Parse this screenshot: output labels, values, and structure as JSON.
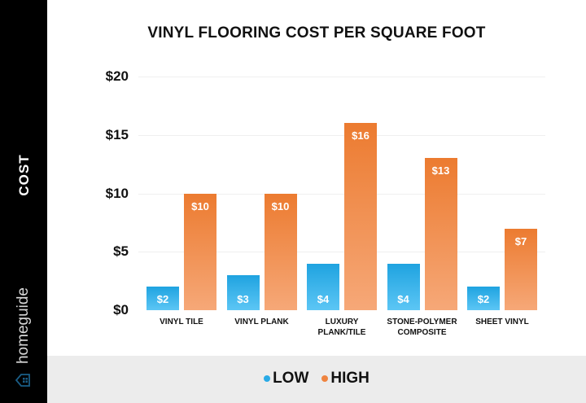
{
  "sidebar": {
    "axis_label": "COST",
    "brand": "homeguide",
    "brand_icon": "house-icon"
  },
  "chart_data": {
    "type": "bar",
    "title": "VINYL FLOORING COST PER SQUARE FOOT",
    "xlabel": "",
    "ylabel": "COST",
    "ylim": [
      0,
      20
    ],
    "yticks": [
      "$0",
      "$5",
      "$10",
      "$15",
      "$20"
    ],
    "grid": true,
    "legend_position": "bottom",
    "categories": [
      "VINYL TILE",
      "VINYL PLANK",
      "LUXURY PLANK/TILE",
      "STONE-POLYMER COMPOSITE",
      "SHEET VINYL"
    ],
    "series": [
      {
        "name": "LOW",
        "color": "#29aae6",
        "values": [
          2,
          3,
          4,
          4,
          2
        ],
        "labels": [
          "$2",
          "$3",
          "$4",
          "$4",
          "$2"
        ]
      },
      {
        "name": "HIGH",
        "color": "#ef8440",
        "values": [
          10,
          10,
          16,
          13,
          7
        ],
        "labels": [
          "$10",
          "$10",
          "$16",
          "$13",
          "$7"
        ]
      }
    ]
  },
  "categories_display": [
    [
      "VINYL TILE"
    ],
    [
      "VINYL PLANK"
    ],
    [
      "LUXURY",
      "PLANK/TILE"
    ],
    [
      "STONE-POLYMER",
      "COMPOSITE"
    ],
    [
      "SHEET VINYL"
    ]
  ],
  "legend": {
    "items": [
      {
        "label": "LOW",
        "color": "#29aae6"
      },
      {
        "label": "HIGH",
        "color": "#ef8440"
      }
    ]
  }
}
